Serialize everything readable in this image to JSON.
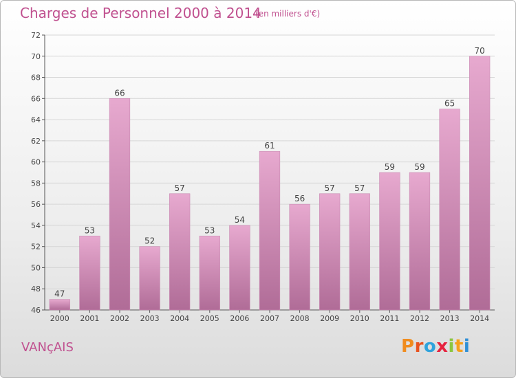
{
  "header": {
    "title": "Charges de Personnel 2000 à 2014",
    "subtitle": "(en milliers d'€)"
  },
  "footer": {
    "commune": "VANçAIS",
    "logo": {
      "letters": [
        "P",
        "r",
        "o",
        "x",
        "i",
        "t",
        "i"
      ]
    }
  },
  "colors": {
    "accent": "#c0508f",
    "bar_top": "#e7a9cf",
    "bar_bottom": "#b06c97",
    "logo": [
      "#f08c1e",
      "#e8531f",
      "#2fa3dc",
      "#e6223e",
      "#8cc63f",
      "#f6a01a",
      "#2f8fd6"
    ]
  },
  "chart_data": {
    "type": "bar",
    "categories": [
      "2000",
      "2001",
      "2002",
      "2003",
      "2004",
      "2005",
      "2006",
      "2007",
      "2008",
      "2009",
      "2010",
      "2011",
      "2012",
      "2013",
      "2014"
    ],
    "values": [
      47,
      53,
      66,
      52,
      57,
      53,
      54,
      61,
      56,
      57,
      57,
      59,
      59,
      65,
      70
    ],
    "ylim": [
      46,
      72
    ],
    "yticks": [
      46,
      48,
      50,
      52,
      54,
      56,
      58,
      60,
      62,
      64,
      66,
      68,
      70,
      72
    ],
    "grid": true,
    "xlabel": "",
    "ylabel": ""
  }
}
